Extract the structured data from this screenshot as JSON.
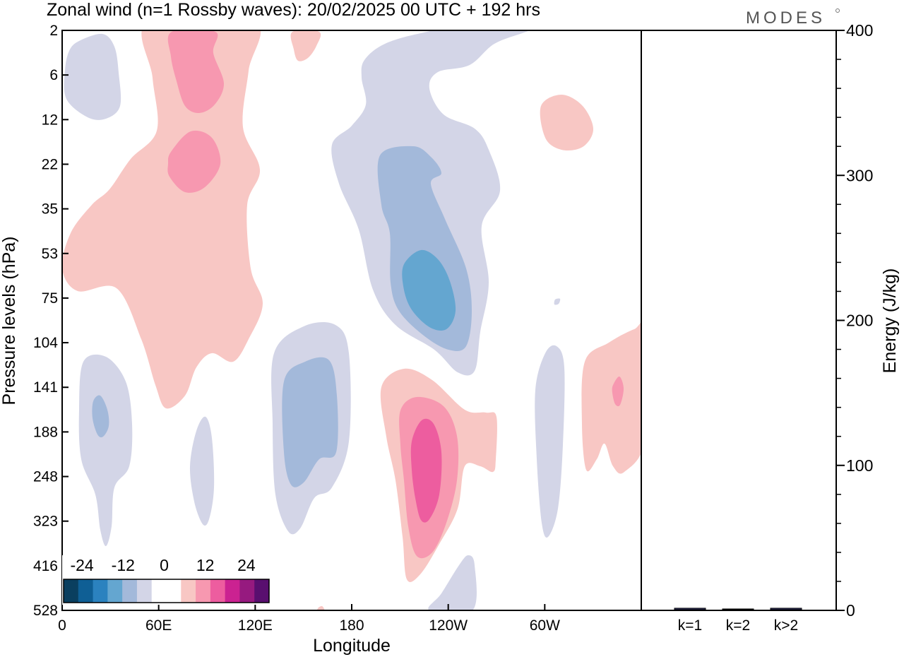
{
  "header": {
    "title": "Zonal wind (n=1 Rossby waves):  20/02/2025  00 UTC  + 192 hrs",
    "brand": "MODES"
  },
  "chart_data": [
    {
      "type": "heatmap",
      "title": "Zonal wind (n=1 Rossby waves):  20/02/2025  00 UTC  + 192 hrs",
      "xlabel": "Longitude",
      "ylabel": "Pressure levels (hPa)",
      "x_ticks": [
        "0",
        "60E",
        "120E",
        "180",
        "120W",
        "60W"
      ],
      "x_range_deg_east": [
        0,
        360
      ],
      "y_ticks": [
        "2",
        "6",
        "12",
        "22",
        "35",
        "53",
        "75",
        "104",
        "141",
        "188",
        "248",
        "323",
        "416",
        "528"
      ],
      "colorbar": {
        "labels": [
          "-24",
          "-12",
          "0",
          "12",
          "24"
        ],
        "colors": [
          "#0a3f5f",
          "#0f5f95",
          "#2b82bf",
          "#64a6d0",
          "#a3b9da",
          "#d3d5e7",
          "#ffffff",
          "#ffffff",
          "#f8c7c4",
          "#f798b0",
          "#ed5d9f",
          "#cb2291",
          "#961a7f",
          "#590f6f"
        ]
      },
      "contour_colors": {
        "neg_weak": "#d3d5e7",
        "neg_mid": "#a3b9da",
        "neg_strong": "#64a6d0",
        "pos_weak": "#f8c7c4",
        "pos_mid": "#f798b0",
        "pos_strong": "#ed5d9f"
      }
    },
    {
      "type": "bar",
      "ylabel": "Energy (J/kg)",
      "categories": [
        "k=1",
        "k=2",
        "k>2"
      ],
      "values": [
        1,
        0.5,
        1
      ],
      "ylim": [
        0,
        400
      ],
      "y_ticks": [
        "0",
        "100",
        "200",
        "300",
        "400"
      ]
    }
  ]
}
